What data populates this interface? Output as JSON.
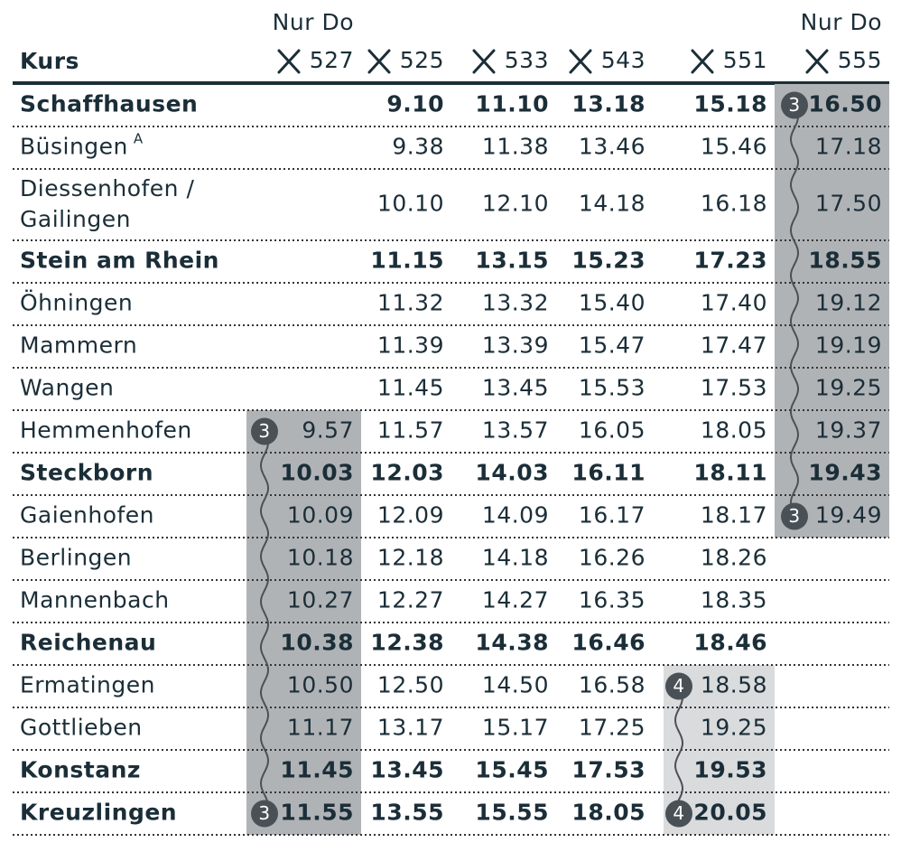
{
  "header": {
    "label": "Kurs",
    "columns": [
      {
        "note": "Nur Do",
        "number": "527"
      },
      {
        "number": "525"
      },
      {
        "number": "533"
      },
      {
        "number": "543"
      },
      {
        "number": "551"
      },
      {
        "note": "Nur Do",
        "number": "555"
      }
    ]
  },
  "rows": [
    {
      "name": [
        "Schaffhausen"
      ],
      "bold": true,
      "times": [
        null,
        "9.10",
        "11.10",
        "13.18",
        "15.18",
        {
          "time": "16.50",
          "badge": "3"
        }
      ]
    },
    {
      "name": [
        "Büsingen"
      ],
      "mark": "A",
      "times": [
        null,
        "9.38",
        "11.38",
        "13.46",
        "15.46",
        "17.18"
      ]
    },
    {
      "name": [
        "Diessenhofen /",
        "Gailingen"
      ],
      "times": [
        null,
        "10.10",
        "12.10",
        "14.18",
        "16.18",
        "17.50"
      ]
    },
    {
      "name": [
        "Stein am Rhein"
      ],
      "bold": true,
      "times": [
        null,
        "11.15",
        "13.15",
        "15.23",
        "17.23",
        "18.55"
      ]
    },
    {
      "name": [
        "Öhningen"
      ],
      "times": [
        null,
        "11.32",
        "13.32",
        "15.40",
        "17.40",
        "19.12"
      ]
    },
    {
      "name": [
        "Mammern"
      ],
      "times": [
        null,
        "11.39",
        "13.39",
        "15.47",
        "17.47",
        "19.19"
      ]
    },
    {
      "name": [
        "Wangen"
      ],
      "times": [
        null,
        "11.45",
        "13.45",
        "15.53",
        "17.53",
        "19.25"
      ]
    },
    {
      "name": [
        "Hemmenhofen"
      ],
      "times": [
        {
          "time": "9.57",
          "badge": "3"
        },
        "11.57",
        "13.57",
        "16.05",
        "18.05",
        "19.37"
      ]
    },
    {
      "name": [
        "Steckborn"
      ],
      "bold": true,
      "times": [
        "10.03",
        "12.03",
        "14.03",
        "16.11",
        "18.11",
        "19.43"
      ]
    },
    {
      "name": [
        "Gaienhofen"
      ],
      "times": [
        "10.09",
        "12.09",
        "14.09",
        "16.17",
        "18.17",
        {
          "time": "19.49",
          "badge": "3"
        }
      ]
    },
    {
      "name": [
        "Berlingen"
      ],
      "times": [
        "10.18",
        "12.18",
        "14.18",
        "16.26",
        "18.26",
        null
      ]
    },
    {
      "name": [
        "Mannenbach"
      ],
      "times": [
        "10.27",
        "12.27",
        "14.27",
        "16.35",
        "18.35",
        null
      ]
    },
    {
      "name": [
        "Reichenau"
      ],
      "bold": true,
      "times": [
        "10.38",
        "12.38",
        "14.38",
        "16.46",
        "18.46",
        null
      ]
    },
    {
      "name": [
        "Ermatingen"
      ],
      "times": [
        "10.50",
        "12.50",
        "14.50",
        "16.58",
        {
          "time": "18.58",
          "badge": "4"
        },
        null
      ]
    },
    {
      "name": [
        "Gottlieben"
      ],
      "times": [
        "11.17",
        "13.17",
        "15.17",
        "17.25",
        "19.25",
        null
      ]
    },
    {
      "name": [
        "Konstanz"
      ],
      "bold": true,
      "times": [
        "11.45",
        "13.45",
        "15.45",
        "17.53",
        "19.53",
        null
      ]
    },
    {
      "name": [
        "Kreuzlingen"
      ],
      "bold": true,
      "times": [
        {
          "time": "11.55",
          "badge": "3"
        },
        "13.55",
        "15.55",
        "18.05",
        {
          "time": "20.05",
          "badge": "4"
        },
        null
      ]
    }
  ]
}
